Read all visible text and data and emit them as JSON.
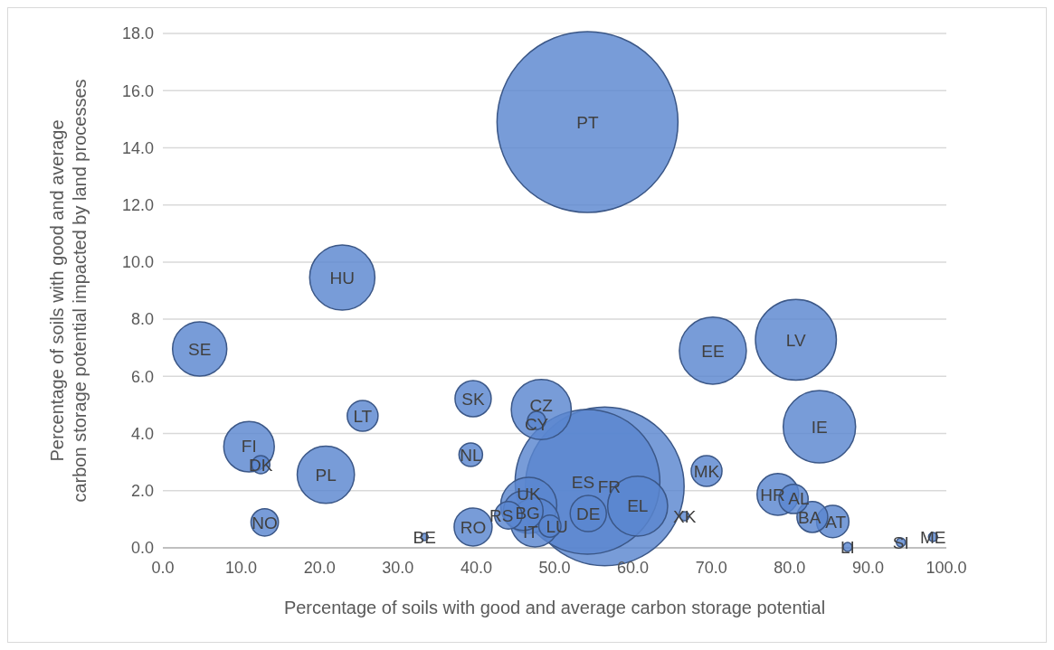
{
  "chart_data": {
    "type": "bubble",
    "xlabel": "Percentage of soils with good and average carbon storage potential",
    "ylabel": "Percentage of soils with good and average carbon storage potential impacted by land processes",
    "color": "#5a86cf",
    "grid": "y",
    "xlim": [
      0,
      100
    ],
    "xticks": [
      {
        "value": 0,
        "label": "0.0"
      },
      {
        "value": 10,
        "label": "10.0"
      },
      {
        "value": 20,
        "label": "20.0"
      },
      {
        "value": 30,
        "label": "30.0"
      },
      {
        "value": 40,
        "label": "40.0"
      },
      {
        "value": 50,
        "label": "50.0"
      },
      {
        "value": 60,
        "label": "60.0"
      },
      {
        "value": 70,
        "label": "70.0"
      },
      {
        "value": 80,
        "label": "80.0"
      },
      {
        "value": 90,
        "label": "90.0"
      },
      {
        "value": 100,
        "label": "100.0"
      }
    ],
    "ylim": [
      0,
      18
    ],
    "yticks": [
      {
        "value": 0,
        "label": "0.0"
      },
      {
        "value": 2,
        "label": "2.0"
      },
      {
        "value": 4,
        "label": "4.0"
      },
      {
        "value": 6,
        "label": "6.0"
      },
      {
        "value": 8,
        "label": "8.0"
      },
      {
        "value": 10,
        "label": "10.0"
      },
      {
        "value": 12,
        "label": "12.0"
      },
      {
        "value": 14,
        "label": "14.0"
      },
      {
        "value": 16,
        "label": "16.0"
      },
      {
        "value": 18,
        "label": "18.0"
      }
    ],
    "series": [
      {
        "name": "PT",
        "x": [
          54.2
        ],
        "values": [
          14.9
        ],
        "sizes": [
          1
        ]
      },
      {
        "name": "ES",
        "x": [
          54.2
        ],
        "values": [
          2.31
        ],
        "sizes": [
          0.64
        ]
      },
      {
        "name": "FR",
        "x": [
          56.4
        ],
        "values": [
          2.15
        ],
        "sizes": [
          0.77
        ]
      },
      {
        "name": "LV",
        "x": [
          80.8
        ],
        "values": [
          7.28
        ],
        "sizes": [
          0.2
        ]
      },
      {
        "name": "IE",
        "x": [
          83.8
        ],
        "values": [
          4.24
        ],
        "sizes": [
          0.16
        ]
      },
      {
        "name": "EE",
        "x": [
          70.2
        ],
        "values": [
          6.9
        ],
        "sizes": [
          0.137
        ]
      },
      {
        "name": "HU",
        "x": [
          22.9
        ],
        "values": [
          9.46
        ],
        "sizes": [
          0.13
        ]
      },
      {
        "name": "SE",
        "x": [
          4.7
        ],
        "values": [
          6.96
        ],
        "sizes": [
          0.09
        ]
      },
      {
        "name": "CZ",
        "x": [
          48.3
        ],
        "values": [
          4.84
        ],
        "sizes": [
          0.11
        ]
      },
      {
        "name": "CY",
        "x": [
          47.7
        ],
        "values": [
          4.46
        ],
        "sizes": [
          0.01
        ]
      },
      {
        "name": "PL",
        "x": [
          20.8
        ],
        "values": [
          2.56
        ],
        "sizes": [
          0.1
        ]
      },
      {
        "name": "FI",
        "x": [
          11.0
        ],
        "values": [
          3.54
        ],
        "sizes": [
          0.078
        ]
      },
      {
        "name": "DK",
        "x": [
          12.5
        ],
        "values": [
          2.91
        ],
        "sizes": [
          0.01
        ]
      },
      {
        "name": "EL",
        "x": [
          60.6
        ],
        "values": [
          1.46
        ],
        "sizes": [
          0.11
        ]
      },
      {
        "name": "DE",
        "x": [
          54.3
        ],
        "values": [
          1.2
        ],
        "sizes": [
          0.04
        ]
      },
      {
        "name": "IT",
        "x": [
          47.5
        ],
        "values": [
          0.89
        ],
        "sizes": [
          0.073
        ]
      },
      {
        "name": "UK",
        "x": [
          46.7
        ],
        "values": [
          1.49
        ],
        "sizes": [
          0.096
        ]
      },
      {
        "name": "BG",
        "x": [
          46.0
        ],
        "values": [
          1.3
        ],
        "sizes": [
          0.048
        ]
      },
      {
        "name": "LU",
        "x": [
          49.4
        ],
        "values": [
          0.76
        ],
        "sizes": [
          0.015
        ]
      },
      {
        "name": "RS",
        "x": [
          44.1
        ],
        "values": [
          1.14
        ],
        "sizes": [
          0.023
        ]
      },
      {
        "name": "RO",
        "x": [
          39.6
        ],
        "values": [
          0.73
        ],
        "sizes": [
          0.044
        ]
      },
      {
        "name": "SK",
        "x": [
          39.6
        ],
        "values": [
          5.22
        ],
        "sizes": [
          0.04
        ]
      },
      {
        "name": "NL",
        "x": [
          39.3
        ],
        "values": [
          3.26
        ],
        "sizes": [
          0.017
        ]
      },
      {
        "name": "LT",
        "x": [
          25.5
        ],
        "values": [
          4.62
        ],
        "sizes": [
          0.029
        ]
      },
      {
        "name": "NO",
        "x": [
          13.0
        ],
        "values": [
          0.89
        ],
        "sizes": [
          0.023
        ]
      },
      {
        "name": "BE",
        "x": [
          33.4
        ],
        "values": [
          0.38
        ],
        "sizes": [
          0.0016
        ]
      },
      {
        "name": "MK",
        "x": [
          69.4
        ],
        "values": [
          2.69
        ],
        "sizes": [
          0.029
        ]
      },
      {
        "name": "XK",
        "x": [
          66.6
        ],
        "values": [
          1.11
        ],
        "sizes": [
          0.0025
        ]
      },
      {
        "name": "HR",
        "x": [
          78.5
        ],
        "values": [
          1.87
        ],
        "sizes": [
          0.053
        ]
      },
      {
        "name": "AL",
        "x": [
          80.5
        ],
        "values": [
          1.71
        ],
        "sizes": [
          0.026
        ]
      },
      {
        "name": "BA",
        "x": [
          82.9
        ],
        "values": [
          1.08
        ],
        "sizes": [
          0.029
        ]
      },
      {
        "name": "AT",
        "x": [
          85.5
        ],
        "values": [
          0.92
        ],
        "sizes": [
          0.032
        ]
      },
      {
        "name": "LI",
        "x": [
          87.4
        ],
        "values": [
          0.03
        ],
        "sizes": [
          0.0025
        ]
      },
      {
        "name": "SI",
        "x": [
          94.2
        ],
        "values": [
          0.19
        ],
        "sizes": [
          0.0025
        ]
      },
      {
        "name": "ME",
        "x": [
          98.3
        ],
        "values": [
          0.38
        ],
        "sizes": [
          0.0025
        ]
      }
    ]
  }
}
